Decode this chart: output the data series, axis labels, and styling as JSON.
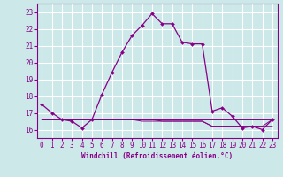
{
  "xlabel": "Windchill (Refroidissement éolien,°C)",
  "bg_color": "#cce8e8",
  "grid_color": "#ffffff",
  "line_color": "#880088",
  "xlim": [
    -0.5,
    23.5
  ],
  "ylim": [
    15.5,
    23.5
  ],
  "yticks": [
    16,
    17,
    18,
    19,
    20,
    21,
    22,
    23
  ],
  "xticks": [
    0,
    1,
    2,
    3,
    4,
    5,
    6,
    7,
    8,
    9,
    10,
    11,
    12,
    13,
    14,
    15,
    16,
    17,
    18,
    19,
    20,
    21,
    22,
    23
  ],
  "series": [
    [
      17.5,
      17.0,
      16.6,
      16.5,
      16.1,
      16.6,
      18.1,
      19.4,
      20.6,
      21.6,
      22.2,
      22.9,
      22.3,
      22.3,
      21.2,
      21.1,
      21.1,
      17.1,
      17.3,
      16.8,
      16.1,
      16.2,
      16.0,
      16.6
    ],
    [
      16.6,
      16.6,
      16.6,
      16.6,
      16.6,
      16.6,
      16.6,
      16.6,
      16.6,
      16.6,
      16.6,
      16.6,
      16.6,
      16.6,
      16.6,
      16.6,
      16.6,
      16.6,
      16.6,
      16.6,
      16.6,
      16.6,
      16.6,
      16.6
    ],
    [
      16.6,
      16.6,
      16.6,
      16.6,
      16.6,
      16.6,
      16.6,
      16.6,
      16.6,
      16.6,
      16.5,
      16.5,
      16.5,
      16.5,
      16.5,
      16.5,
      16.5,
      16.2,
      16.2,
      16.2,
      16.2,
      16.2,
      16.2,
      16.2
    ],
    [
      16.6,
      16.6,
      16.6,
      16.6,
      16.6,
      16.6,
      16.6,
      16.6,
      16.6,
      16.6,
      16.6,
      16.6,
      16.5,
      16.5,
      16.5,
      16.5,
      16.5,
      16.2,
      16.2,
      16.2,
      16.2,
      16.2,
      16.2,
      16.6
    ]
  ]
}
